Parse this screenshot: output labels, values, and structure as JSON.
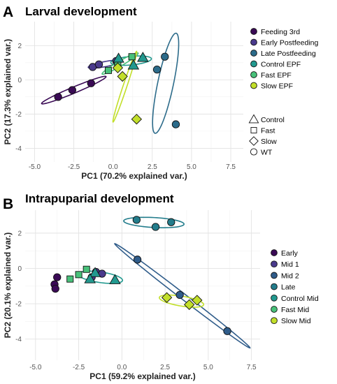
{
  "chart_data": [
    {
      "type": "scatter",
      "panel_label": "A",
      "title": "Larval development",
      "xlabel": "PC1 (70.2% explained var.)",
      "ylabel": "PC2 (17.3% explained var.)",
      "xlim": [
        -5.6,
        8.3
      ],
      "ylim": [
        -4.8,
        3.4
      ],
      "xticks": [
        -5.0,
        -2.5,
        0.0,
        2.5,
        5.0,
        7.5
      ],
      "xtick_labels": [
        "-5.0",
        "-2.5",
        "0.0",
        "2.5",
        "5.0",
        "7.5"
      ],
      "yticks": [
        -4,
        -2,
        0,
        2
      ],
      "ytick_labels": [
        "-4",
        "-2",
        "0",
        "2"
      ],
      "grid": true,
      "legend_placement": "right",
      "series": [
        {
          "name": "Feeding 3rd",
          "color": "#3a0a55",
          "points": [
            {
              "x": -3.5,
              "y": -1.0,
              "shape": "circle"
            },
            {
              "x": -2.6,
              "y": -0.6,
              "shape": "circle"
            },
            {
              "x": -1.4,
              "y": -0.2,
              "shape": "circle"
            }
          ],
          "ellipse": {
            "cx": -2.5,
            "cy": -0.6,
            "rx": 2.2,
            "ry": 0.18,
            "angle_deg": 21
          }
        },
        {
          "name": "Early Postfeeding",
          "color": "#4a3a8c",
          "points": [
            {
              "x": -1.3,
              "y": 0.75,
              "shape": "circle"
            },
            {
              "x": -0.9,
              "y": 0.9,
              "shape": "circle"
            },
            {
              "x": 0.2,
              "y": 1.1,
              "shape": "circle"
            }
          ],
          "ellipse": {
            "cx": -0.5,
            "cy": 0.92,
            "rx": 1.1,
            "ry": 0.15,
            "angle_deg": 10
          }
        },
        {
          "name": "Late Postfeeding",
          "color": "#2c6b8a",
          "points": [
            {
              "x": 2.8,
              "y": 0.6,
              "shape": "circle"
            },
            {
              "x": 3.3,
              "y": 1.35,
              "shape": "circle"
            },
            {
              "x": 4.0,
              "y": -2.6,
              "shape": "circle"
            }
          ],
          "ellipse": {
            "cx": 3.35,
            "cy": -0.2,
            "rx": 3.0,
            "ry": 0.5,
            "angle_deg": 77
          }
        },
        {
          "name": "Control EPF",
          "color": "#22998f",
          "points": [
            {
              "x": 0.35,
              "y": 1.25,
              "shape": "triangle"
            },
            {
              "x": 1.3,
              "y": 0.85,
              "shape": "triangle"
            },
            {
              "x": 1.9,
              "y": 1.3,
              "shape": "triangle"
            }
          ],
          "ellipse": {
            "cx": 1.15,
            "cy": 1.12,
            "rx": 1.3,
            "ry": 0.25,
            "angle_deg": 5
          }
        },
        {
          "name": "Fast EPF",
          "color": "#48c17a",
          "points": [
            {
              "x": -0.3,
              "y": 0.55,
              "shape": "square"
            },
            {
              "x": 0.3,
              "y": 0.85,
              "shape": "square"
            },
            {
              "x": 1.2,
              "y": 1.35,
              "shape": "square"
            }
          ],
          "ellipse": {
            "cx": 0.45,
            "cy": 0.95,
            "rx": 1.3,
            "ry": 0.15,
            "angle_deg": 28
          }
        },
        {
          "name": "Slow EPF",
          "color": "#c2df2a",
          "points": [
            {
              "x": 0.3,
              "y": 0.7,
              "shape": "diamond"
            },
            {
              "x": 0.6,
              "y": 0.2,
              "shape": "diamond"
            },
            {
              "x": 1.5,
              "y": -2.3,
              "shape": "diamond"
            }
          ],
          "ellipse": {
            "cx": 0.75,
            "cy": -0.4,
            "rx": 2.2,
            "ry": 0.12,
            "angle_deg": 70
          }
        }
      ],
      "shape_legend": [
        {
          "label": "Control",
          "shape": "triangle"
        },
        {
          "label": "Fast",
          "shape": "square"
        },
        {
          "label": "Slow",
          "shape": "diamond"
        },
        {
          "label": "WT",
          "shape": "circle"
        }
      ]
    },
    {
      "type": "scatter",
      "panel_label": "B",
      "title": "Intrapuparial development",
      "xlabel": "PC1 (59.2% explained var.)",
      "ylabel": "PC2 (20.1% explained var.)",
      "xlim": [
        -5.6,
        8.0
      ],
      "ylim": [
        -5.2,
        3.3
      ],
      "xticks": [
        -5.0,
        -2.5,
        0.0,
        2.5,
        5.0,
        7.5
      ],
      "xtick_labels": [
        "-5.0",
        "-2.5",
        "0.0",
        "2.5",
        "5.0",
        "7.5"
      ],
      "yticks": [
        -4,
        -2,
        0,
        2
      ],
      "ytick_labels": [
        "-4",
        "-2",
        "0",
        "2"
      ],
      "grid": true,
      "legend_placement": "right",
      "series": [
        {
          "name": "Early",
          "color": "#3a0a55",
          "points": [
            {
              "x": -3.75,
              "y": -0.5,
              "shape": "circle"
            },
            {
              "x": -3.9,
              "y": -0.9,
              "shape": "circle"
            },
            {
              "x": -3.85,
              "y": -1.15,
              "shape": "circle"
            }
          ],
          "ellipse": null
        },
        {
          "name": "Mid 1",
          "color": "#4a3a8c",
          "points": [
            {
              "x": -1.5,
              "y": -0.2,
              "shape": "circle"
            },
            {
              "x": -1.15,
              "y": -0.3,
              "shape": "circle"
            },
            {
              "x": -1.75,
              "y": -0.5,
              "shape": "circle"
            }
          ],
          "ellipse": null
        },
        {
          "name": "Mid 2",
          "color": "#2f5c8a",
          "points": [
            {
              "x": 0.9,
              "y": 0.5,
              "shape": "circle"
            },
            {
              "x": 3.35,
              "y": -1.5,
              "shape": "circle"
            },
            {
              "x": 6.1,
              "y": -3.55,
              "shape": "circle"
            }
          ],
          "ellipse": {
            "cx": 3.5,
            "cy": -1.55,
            "rx": 4.9,
            "ry": 0.16,
            "angle_deg": -37
          }
        },
        {
          "name": "Late",
          "color": "#237d8c",
          "points": [
            {
              "x": 0.85,
              "y": 2.75,
              "shape": "circle"
            },
            {
              "x": 1.95,
              "y": 2.35,
              "shape": "circle"
            },
            {
              "x": 2.85,
              "y": 2.62,
              "shape": "circle"
            }
          ],
          "ellipse": {
            "cx": 1.85,
            "cy": 2.6,
            "rx": 1.75,
            "ry": 0.28,
            "angle_deg": -3
          }
        },
        {
          "name": "Control Mid",
          "color": "#22998f",
          "points": [
            {
              "x": -1.55,
              "y": -0.25,
              "shape": "triangle"
            },
            {
              "x": -1.85,
              "y": -0.6,
              "shape": "triangle"
            },
            {
              "x": -0.4,
              "y": -0.65,
              "shape": "triangle"
            }
          ],
          "ellipse": {
            "cx": -1.25,
            "cy": -0.5,
            "rx": 1.3,
            "ry": 0.3,
            "angle_deg": -8
          }
        },
        {
          "name": "Fast Mid",
          "color": "#48c17a",
          "points": [
            {
              "x": -3.0,
              "y": -0.6,
              "shape": "square"
            },
            {
              "x": -2.5,
              "y": -0.35,
              "shape": "square"
            },
            {
              "x": -2.05,
              "y": -0.05,
              "shape": "square"
            }
          ],
          "ellipse": null
        },
        {
          "name": "Slow Mid",
          "color": "#c2df2a",
          "points": [
            {
              "x": 2.6,
              "y": -1.65,
              "shape": "diamond"
            },
            {
              "x": 3.9,
              "y": -2.05,
              "shape": "diamond"
            },
            {
              "x": 4.35,
              "y": -1.8,
              "shape": "diamond"
            }
          ],
          "ellipse": {
            "cx": 3.45,
            "cy": -1.85,
            "rx": 1.3,
            "ry": 0.28,
            "angle_deg": -9
          }
        }
      ]
    }
  ]
}
